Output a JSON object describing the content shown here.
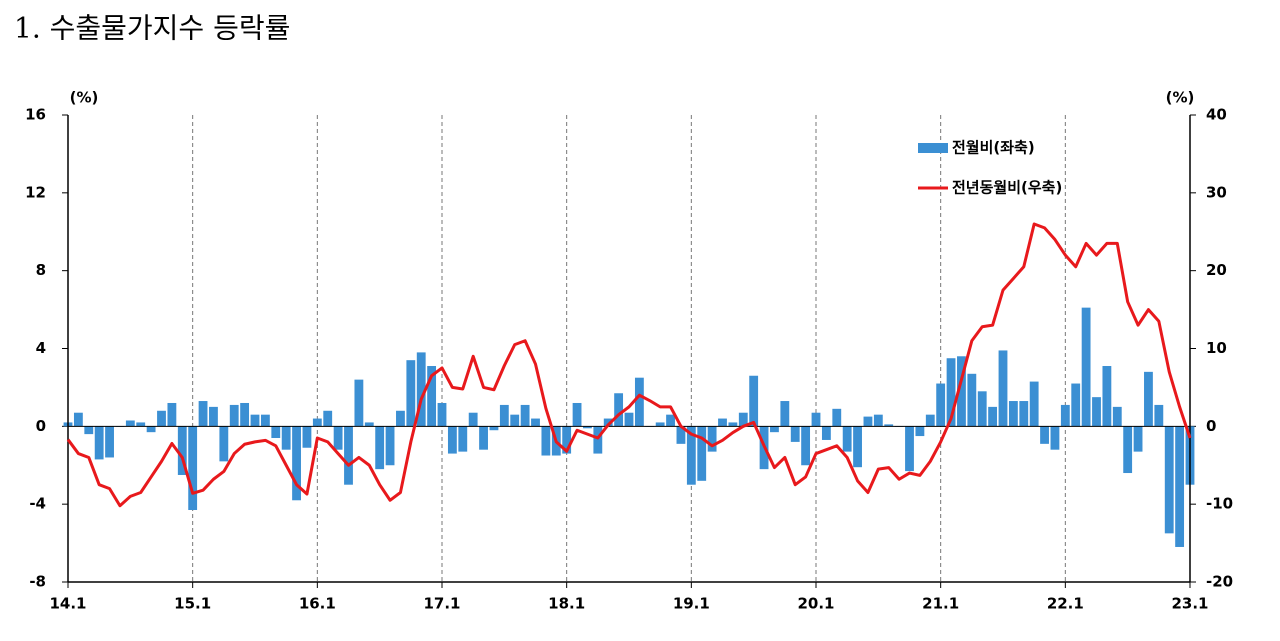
{
  "chart_data": {
    "type": "bar_line",
    "title": "1. 수출물가지수 등락률",
    "y_label": "(%)",
    "y2_label": "(%)",
    "categories": [
      "14.1",
      null,
      null,
      null,
      null,
      null,
      null,
      null,
      null,
      null,
      null,
      null,
      "15.1",
      null,
      null,
      null,
      null,
      null,
      null,
      null,
      null,
      null,
      null,
      null,
      "16.1",
      null,
      null,
      null,
      null,
      null,
      null,
      null,
      null,
      null,
      null,
      null,
      "17.1",
      null,
      null,
      null,
      null,
      null,
      null,
      null,
      null,
      null,
      null,
      null,
      "18.1",
      null,
      null,
      null,
      null,
      null,
      null,
      null,
      null,
      null,
      null,
      null,
      "19.1",
      null,
      null,
      null,
      null,
      null,
      null,
      null,
      null,
      null,
      null,
      null,
      "20.1",
      null,
      null,
      null,
      null,
      null,
      null,
      null,
      null,
      null,
      null,
      null,
      "21.1",
      null,
      null,
      null,
      null,
      null,
      null,
      null,
      null,
      null,
      null,
      null,
      "22.1",
      null,
      null,
      null,
      null,
      null,
      null,
      null,
      null,
      null,
      null,
      null,
      "23.1"
    ],
    "series": [
      {
        "name": "전월비(좌축)",
        "kind": "bar",
        "color": "#3b8fd3",
        "axis": "y",
        "values": [
          0.2,
          0.7,
          -0.4,
          -1.7,
          -1.6,
          0.0,
          0.3,
          0.2,
          -0.3,
          0.8,
          1.2,
          -2.5,
          -4.3,
          1.3,
          1.0,
          -1.8,
          1.1,
          1.2,
          0.6,
          0.6,
          -0.6,
          -1.2,
          -3.8,
          -1.1,
          0.4,
          0.8,
          -1.2,
          -3.0,
          2.4,
          0.2,
          -2.2,
          -2.0,
          0.8,
          3.4,
          3.8,
          3.1,
          1.2,
          -1.4,
          -1.3,
          0.7,
          -1.2,
          -0.2,
          1.1,
          0.6,
          1.1,
          0.4,
          -1.5,
          -1.5,
          -1.4,
          1.2,
          -0.1,
          -1.4,
          0.4,
          1.7,
          0.7,
          2.5,
          0.0,
          0.2,
          0.6,
          -0.9,
          -3.0,
          -2.8,
          -1.3,
          0.4,
          0.2,
          0.7,
          2.6,
          -2.2,
          -0.3,
          1.3,
          -0.8,
          -2.0,
          0.7,
          -0.7,
          0.9,
          -1.3,
          -2.1,
          0.5,
          0.6,
          0.1,
          0.0,
          -2.3,
          -0.5,
          0.6,
          2.2,
          3.5,
          3.6,
          2.7,
          1.8,
          1.0,
          3.9,
          1.3,
          1.3,
          2.3,
          -0.9,
          -1.2,
          1.1,
          2.2,
          6.1,
          1.5,
          3.1,
          1.0,
          -2.4,
          -1.3,
          2.8,
          1.1,
          -5.5,
          -6.2,
          -3.0
        ]
      },
      {
        "name": "전년동월비(우축)",
        "kind": "line",
        "color": "#e8191c",
        "axis": "y2",
        "values": [
          -1.7,
          -3.5,
          -4.0,
          -7.5,
          -8.0,
          -10.2,
          -9.0,
          -8.5,
          -6.5,
          -4.5,
          -2.2,
          -4.0,
          -8.6,
          -8.2,
          -6.8,
          -5.8,
          -3.5,
          -2.3,
          -2.0,
          -1.8,
          -2.5,
          -5.0,
          -7.5,
          -8.7,
          -1.5,
          -2.0,
          -3.5,
          -5.0,
          -4.0,
          -5.0,
          -7.5,
          -9.5,
          -8.5,
          -2.0,
          3.5,
          6.5,
          7.5,
          5.0,
          4.8,
          9.0,
          5.0,
          4.7,
          7.8,
          10.5,
          11.0,
          8.0,
          2.3,
          -2.0,
          -3.2,
          -0.5,
          -1.0,
          -1.5,
          0.2,
          1.5,
          2.5,
          4.0,
          3.3,
          2.5,
          2.5,
          0.0,
          -1.0,
          -1.5,
          -2.5,
          -1.8,
          -0.8,
          0.0,
          0.5,
          -2.5,
          -5.3,
          -4.0,
          -7.5,
          -6.5,
          -3.5,
          -3.0,
          -2.5,
          -4.0,
          -7.0,
          -8.5,
          -5.5,
          -5.3,
          -6.8,
          -6.0,
          -6.3,
          -4.5,
          -2.0,
          1.0,
          6.0,
          11.0,
          12.8,
          13.0,
          17.5,
          19.0,
          20.5,
          26.0,
          25.5,
          24.0,
          22.0,
          20.5,
          23.5,
          22.0,
          23.5,
          23.5,
          16.0,
          13.0,
          15.0,
          13.5,
          7.0,
          2.5,
          -1.5
        ]
      }
    ],
    "ylim": [
      -8,
      16
    ],
    "yticks": [
      -8,
      -4,
      0,
      4,
      8,
      12,
      16
    ],
    "y2lim": [
      -20,
      40
    ],
    "y2ticks": [
      -20,
      -10,
      0,
      10,
      20,
      30,
      40
    ],
    "grid": true,
    "legend": "top-right"
  }
}
